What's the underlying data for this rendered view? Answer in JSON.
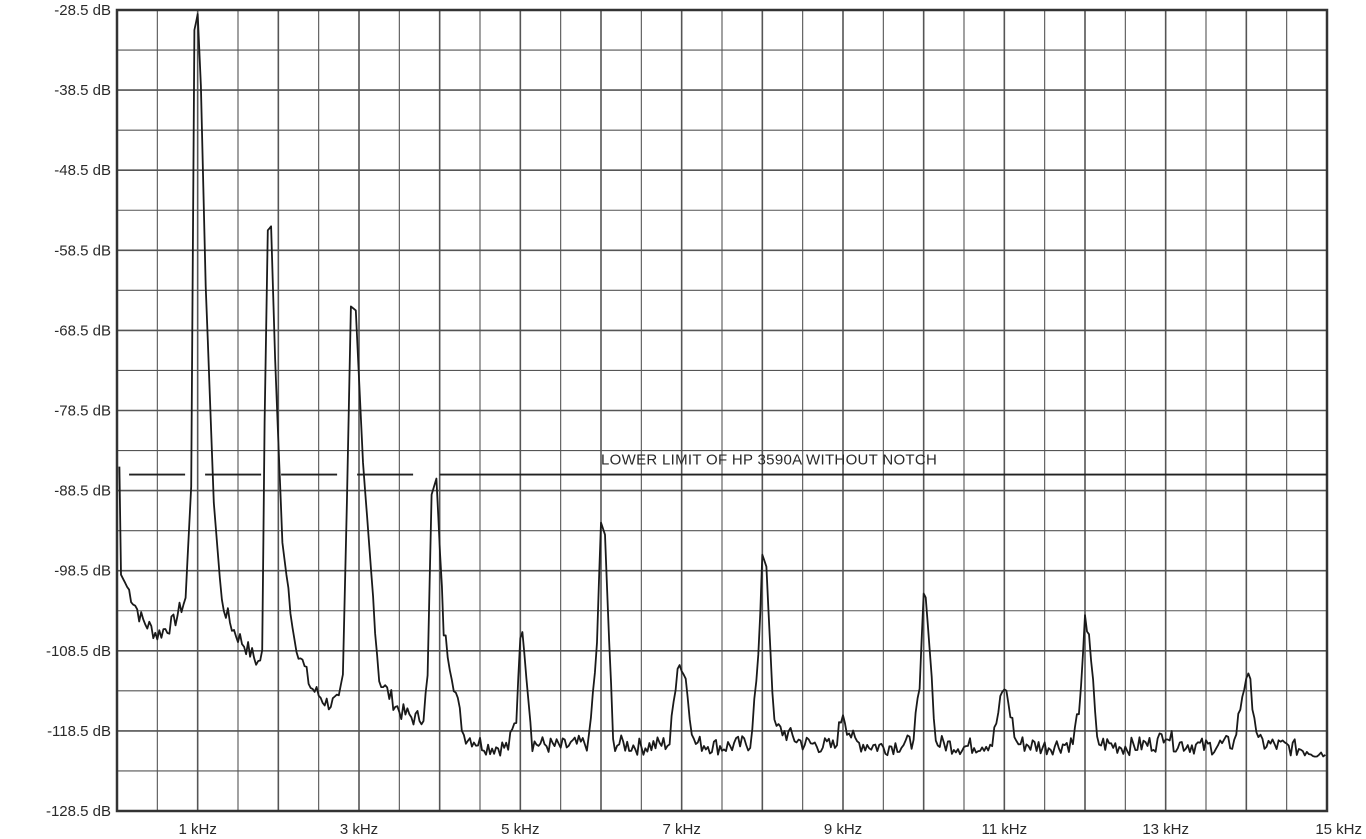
{
  "chart_data": {
    "type": "line",
    "title": "",
    "xlabel": "",
    "ylabel": "",
    "xlim": [
      0,
      15
    ],
    "ylim": [
      -128.5,
      -28.5
    ],
    "y_ticks": [
      "-28.5 dB",
      "-38.5 dB",
      "-48.5 dB",
      "-58.5 dB",
      "-68.5 dB",
      "-78.5 dB",
      "-88.5 dB",
      "-98.5 dB",
      "-108.5 dB",
      "-118.5 dB",
      "-128.5 dB"
    ],
    "y_tick_values": [
      -28.5,
      -38.5,
      -48.5,
      -58.5,
      -68.5,
      -78.5,
      -88.5,
      -98.5,
      -108.5,
      -118.5,
      -128.5
    ],
    "x_ticks": [
      "1 kHz",
      "3 kHz",
      "5 kHz",
      "7 kHz",
      "9 kHz",
      "11 kHz",
      "13 kHz",
      "15 kHz"
    ],
    "x_tick_values": [
      1,
      3,
      5,
      7,
      9,
      11,
      13,
      15
    ],
    "grid": true,
    "grid_minor_x_step": 0.5,
    "grid_minor_y_step": 5,
    "series": [
      {
        "color": "#1a1a1a",
        "x": [
          0.03,
          0.05,
          0.15,
          0.3,
          0.5,
          0.7,
          0.85,
          0.92,
          0.96,
          1.0,
          1.04,
          1.1,
          1.2,
          1.3,
          1.45,
          1.6,
          1.75,
          1.8,
          1.83,
          1.87,
          1.91,
          1.96,
          2.05,
          2.2,
          2.4,
          2.6,
          2.75,
          2.8,
          2.85,
          2.9,
          2.96,
          3.05,
          3.25,
          3.5,
          3.7,
          3.8,
          3.85,
          3.9,
          3.96,
          4.05,
          4.3,
          4.6,
          4.85,
          4.95,
          5.0,
          5.05,
          5.15,
          5.5,
          5.85,
          5.95,
          6.0,
          6.05,
          6.15,
          6.5,
          6.85,
          6.95,
          7.0,
          7.05,
          7.15,
          7.5,
          7.85,
          7.95,
          8.0,
          8.05,
          8.15,
          8.5,
          8.9,
          9.0,
          9.05,
          9.15,
          9.5,
          9.85,
          9.95,
          10.0,
          10.05,
          10.15,
          10.5,
          10.85,
          10.95,
          11.0,
          11.05,
          11.15,
          11.5,
          11.85,
          11.95,
          12.0,
          12.05,
          12.15,
          12.5,
          12.9,
          13.0,
          13.1,
          13.5,
          13.85,
          13.95,
          14.0,
          14.05,
          14.15,
          14.5,
          14.9,
          14.98
        ],
        "y": [
          -85.5,
          -99.0,
          -101.0,
          -104.5,
          -106.5,
          -105.0,
          -102.0,
          -88.0,
          -31.0,
          -29.0,
          -38.0,
          -63.0,
          -90.0,
          -102.5,
          -106.0,
          -108.0,
          -110.0,
          -109.0,
          -80.0,
          -56.0,
          -55.5,
          -72.0,
          -95.0,
          -107.0,
          -113.0,
          -115.0,
          -115.0,
          -112.0,
          -90.0,
          -65.5,
          -66.0,
          -85.0,
          -112.0,
          -116.0,
          -117.0,
          -116.5,
          -112.0,
          -89.0,
          -87.0,
          -106.0,
          -119.0,
          -120.5,
          -120.5,
          -117.0,
          -106.0,
          -108.0,
          -120.0,
          -120.5,
          -120.0,
          -108.0,
          -92.5,
          -94.0,
          -120.0,
          -120.5,
          -120.0,
          -110.0,
          -110.5,
          -112.0,
          -120.0,
          -120.5,
          -120.0,
          -110.0,
          -96.5,
          -98.0,
          -118.0,
          -120.0,
          -120.5,
          -116.0,
          -118.0,
          -120.0,
          -120.5,
          -120.0,
          -114.0,
          -101.5,
          -104.0,
          -120.0,
          -120.5,
          -120.0,
          -115.0,
          -113.0,
          -115.0,
          -120.0,
          -120.5,
          -120.0,
          -114.0,
          -105.0,
          -106.0,
          -120.0,
          -120.5,
          -120.0,
          -118.5,
          -120.0,
          -120.5,
          -120.0,
          -114.0,
          -111.5,
          -113.0,
          -120.0,
          -120.5,
          -121.0,
          -121.5
        ]
      }
    ],
    "reference_line": {
      "y": -86.5,
      "style": "dashed-then-solid",
      "label": "LOWER LIMIT OF HP 3590A WITHOUT NOTCH"
    }
  }
}
